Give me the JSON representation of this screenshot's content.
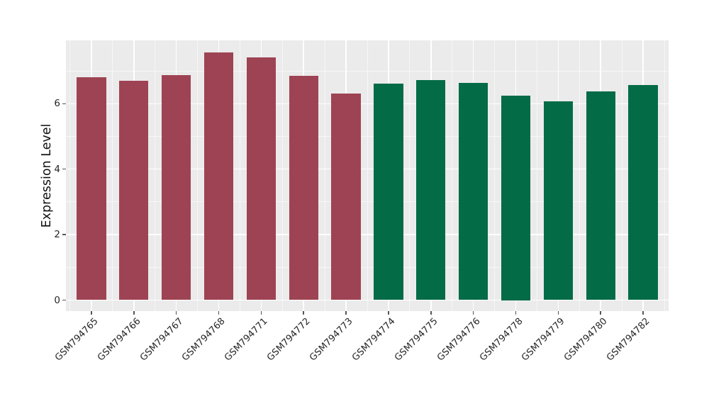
{
  "chart_data": {
    "type": "bar",
    "title": "",
    "xlabel": "",
    "ylabel": "Expression Level",
    "categories": [
      "GSM794765",
      "GSM794766",
      "GSM794767",
      "GSM794768",
      "GSM794771",
      "GSM794772",
      "GSM794773",
      "GSM794774",
      "GSM794775",
      "GSM794776",
      "GSM794778",
      "GSM794779",
      "GSM794780",
      "GSM794782"
    ],
    "values": [
      6.81,
      6.7,
      6.88,
      7.57,
      7.42,
      6.85,
      6.3,
      6.62,
      6.71,
      6.64,
      6.25,
      6.08,
      6.38,
      6.58
    ],
    "bar_colors": [
      "#9E4353",
      "#9E4353",
      "#9E4353",
      "#9E4353",
      "#9E4353",
      "#9E4353",
      "#9E4353",
      "#046B47",
      "#046B47",
      "#046B47",
      "#046B47",
      "#046B47",
      "#046B47",
      "#046B47"
    ],
    "group_colors": {
      "group_1_red": "#9E4353",
      "group_2_green": "#046B47"
    },
    "yticks": [
      0,
      2,
      4,
      6
    ],
    "minor_yticks": [
      1,
      3,
      5,
      7
    ],
    "ylim": [
      -0.4,
      7.95
    ],
    "grid": true,
    "legend": "none",
    "plot_background": "#EBEBEB",
    "grid_color": "#FFFFFF",
    "tick_color": "#555555",
    "text_color": "#262626",
    "bar_width_frac": 0.69,
    "x_label_rotation": -45
  }
}
